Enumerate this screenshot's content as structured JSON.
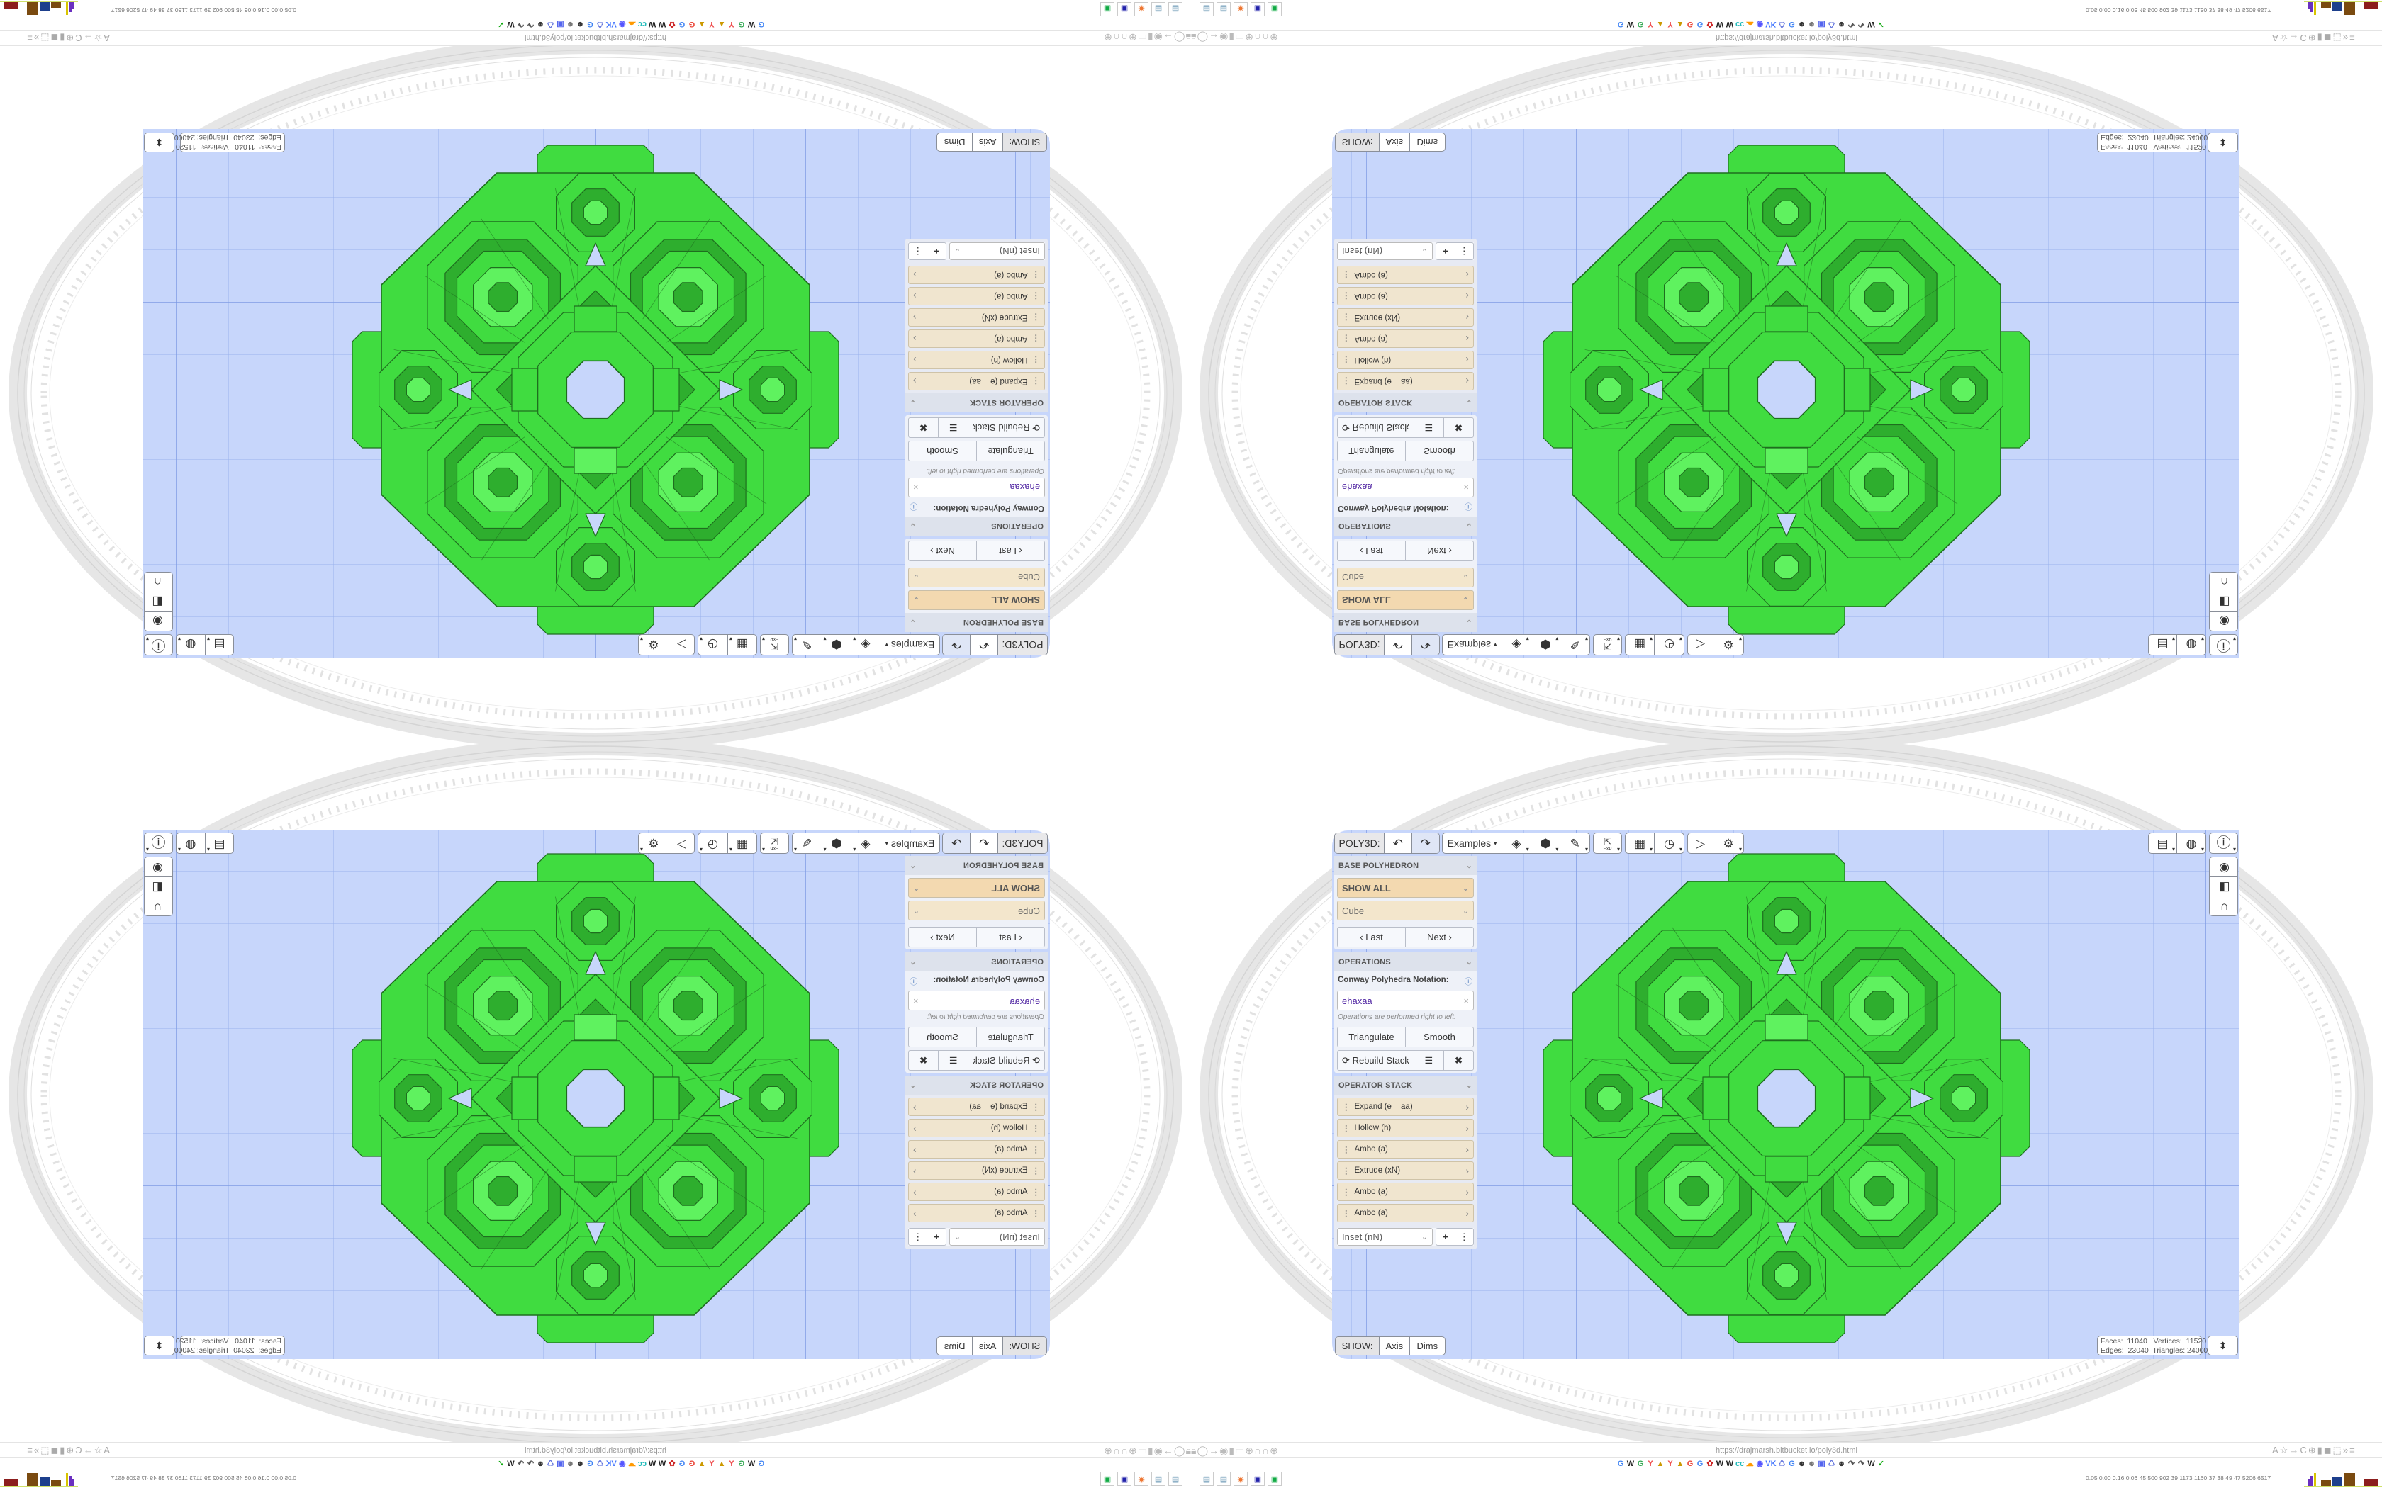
{
  "colors": {
    "canvas_bg": "#c7d6fb",
    "poly_green": "#40dc40",
    "poly_dark": "#2eae2e",
    "poly_light": "#5ff25f",
    "poly_edge": "#1f6e1f",
    "base_filter_bg": "#f3d9b0",
    "base_shape_bg": "#f3e6cc",
    "stack_item_bg": "#f0e5cf",
    "notation_text": "#4b1fa0"
  },
  "toolbar": {
    "app_label": "POLY3D:",
    "undo_icon": "↶",
    "redo_icon": "↷",
    "examples": "Examples",
    "examples_caret": "▾",
    "tool_icons": [
      {
        "name": "paint-bucket-icon",
        "glyph": "◈"
      },
      {
        "name": "cube-icon",
        "glyph": "⬢"
      },
      {
        "name": "edit-icon",
        "glyph": "✎"
      },
      {
        "name": "export-icon",
        "glyph": "⇱"
      },
      {
        "name": "calendar-icon",
        "glyph": "▦"
      },
      {
        "name": "clock-icon",
        "glyph": "◷"
      },
      {
        "name": "play-icon",
        "glyph": "▷"
      },
      {
        "name": "settings-icon",
        "glyph": "⚙"
      }
    ],
    "export_sub": "EXP",
    "right_icons": [
      {
        "name": "calendar-clock-icon",
        "glyph": "▤"
      },
      {
        "name": "globe-icon",
        "glyph": "◍"
      },
      {
        "name": "info-icon",
        "glyph": "ⓘ"
      }
    ],
    "side_icons": [
      {
        "name": "eye-icon",
        "glyph": "◉"
      },
      {
        "name": "half-square-icon",
        "glyph": "◧"
      },
      {
        "name": "magnet-icon",
        "glyph": "∩"
      }
    ]
  },
  "panel": {
    "base": {
      "header": "BASE POLYHEDRON",
      "filter": "SHOW ALL",
      "shape": "Cube",
      "last": "Last",
      "next": "Next"
    },
    "operations": {
      "header": "OPERATIONS",
      "notation_label": "Conway Polyhedra Notation:",
      "notation_value": "ehaxaa",
      "hint": "Operations are performed right to left.",
      "triangulate": "Triangulate",
      "smooth": "Smooth",
      "rebuild": "Rebuild Stack"
    },
    "stack": {
      "header": "OPERATOR STACK",
      "items": [
        "Expand (e = aa)",
        "Hollow (h)",
        "Ambo (a)",
        "Extrude (xN)",
        "Ambo (a)",
        "Ambo (a)"
      ],
      "add_select": "Inset (nN)"
    }
  },
  "show": {
    "label": "SHOW:",
    "axis": "Axis",
    "dims": "Dims"
  },
  "stats": {
    "faces_label": "Faces:",
    "faces": "11040",
    "vertices_label": "Vertices:",
    "vertices": "11520",
    "edges_label": "Edges:",
    "edges": "23040",
    "triangles_label": "Triangles:",
    "triangles": "24000"
  },
  "browser": {
    "url": "https://drajmarsh.bitbucket.io/poly3d.html",
    "perf": "0.05 0.00 0.16 0.06  45  500  902  39  1173 1160  37  38  49  47  5206 6517",
    "bookmarks": [
      {
        "t": "G",
        "c": "#4285f4"
      },
      {
        "t": "W",
        "c": "#222"
      },
      {
        "t": "G",
        "c": "#34a853"
      },
      {
        "t": "Y",
        "c": "#e44"
      },
      {
        "t": "▲",
        "c": "#c90"
      },
      {
        "t": "Y",
        "c": "#e44"
      },
      {
        "t": "▲",
        "c": "#c90"
      },
      {
        "t": "G",
        "c": "#ea4335"
      },
      {
        "t": "G",
        "c": "#4285f4"
      },
      {
        "t": "✿",
        "c": "#c22"
      },
      {
        "t": "W",
        "c": "#222"
      },
      {
        "t": "W",
        "c": "#222"
      },
      {
        "t": "cc",
        "c": "#2bb"
      },
      {
        "t": "☁",
        "c": "#f90"
      },
      {
        "t": "◉",
        "c": "#55f"
      },
      {
        "t": "VK",
        "c": "#47f"
      },
      {
        "t": "♺",
        "c": "#67d"
      },
      {
        "t": "G",
        "c": "#4285f4"
      },
      {
        "t": "☻",
        "c": "#333"
      },
      {
        "t": "☻",
        "c": "#777"
      },
      {
        "t": "▣",
        "c": "#56e"
      },
      {
        "t": "♺",
        "c": "#67d"
      },
      {
        "t": "☻",
        "c": "#333"
      },
      {
        "t": "↷",
        "c": "#555"
      },
      {
        "t": "↷",
        "c": "#555"
      },
      {
        "t": "W",
        "c": "#222"
      },
      {
        "t": "✓",
        "c": "#1a1"
      }
    ],
    "nav_icons": "🔒︎◯→◉▮▭⊕∩∩⊕",
    "right_icons": "A☆→C⊕▮◼⬚»≡",
    "taskbar": [
      {
        "t": "▤",
        "c": "#58a"
      },
      {
        "t": "▤",
        "c": "#58a"
      },
      {
        "t": "◉",
        "c": "#e73"
      },
      {
        "t": "▣",
        "c": "#22a"
      },
      {
        "t": "▣",
        "c": "#1a4"
      }
    ]
  }
}
